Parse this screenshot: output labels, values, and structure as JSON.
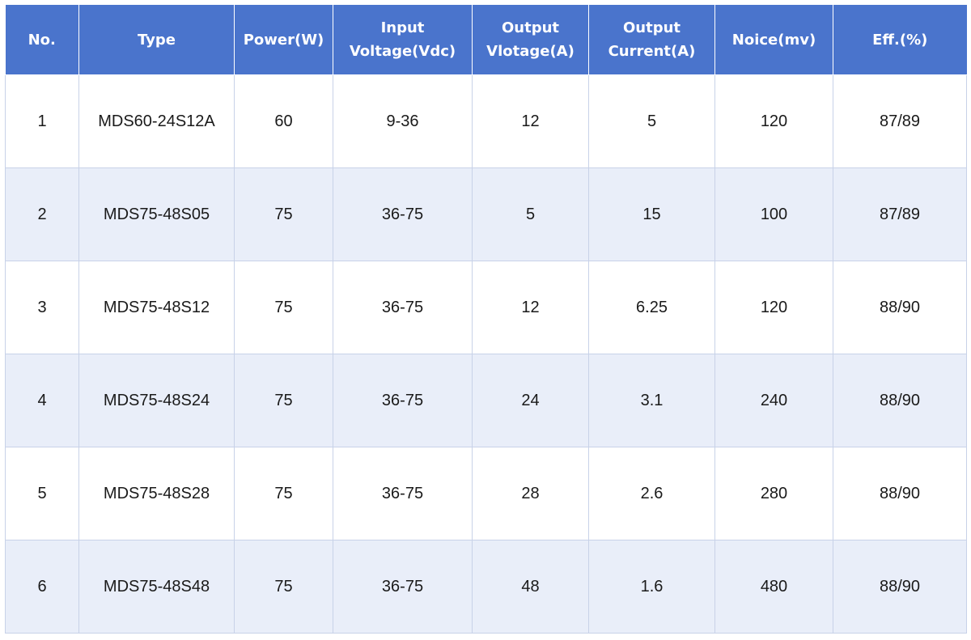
{
  "table": {
    "headers": [
      [
        "No."
      ],
      [
        "Type"
      ],
      [
        "Power(W)"
      ],
      [
        "Input",
        "Voltage(Vdc)"
      ],
      [
        "Output",
        "Vlotage(A)"
      ],
      [
        "Output",
        "Current(A)"
      ],
      [
        "Noice(mv)"
      ],
      [
        "Eff.(%)"
      ]
    ],
    "rows": [
      [
        "1",
        "MDS60-24S12A",
        "60",
        "9-36",
        "12",
        "5",
        "120",
        "87/89"
      ],
      [
        "2",
        "MDS75-48S05",
        "75",
        "36-75",
        "5",
        "15",
        "100",
        "87/89"
      ],
      [
        "3",
        "MDS75-48S12",
        "75",
        "36-75",
        "12",
        "6.25",
        "120",
        "88/90"
      ],
      [
        "4",
        "MDS75-48S24",
        "75",
        "36-75",
        "24",
        "3.1",
        "240",
        "88/90"
      ],
      [
        "5",
        "MDS75-48S28",
        "75",
        "36-75",
        "28",
        "2.6",
        "280",
        "88/90"
      ],
      [
        "6",
        "MDS75-48S48",
        "75",
        "36-75",
        "48",
        "1.6",
        "480",
        "88/90"
      ]
    ]
  },
  "colors": {
    "header_bg": "#4a74cc",
    "header_text": "#ffffff",
    "row_alt_bg": "#e9eef9",
    "row_bg": "#ffffff"
  }
}
